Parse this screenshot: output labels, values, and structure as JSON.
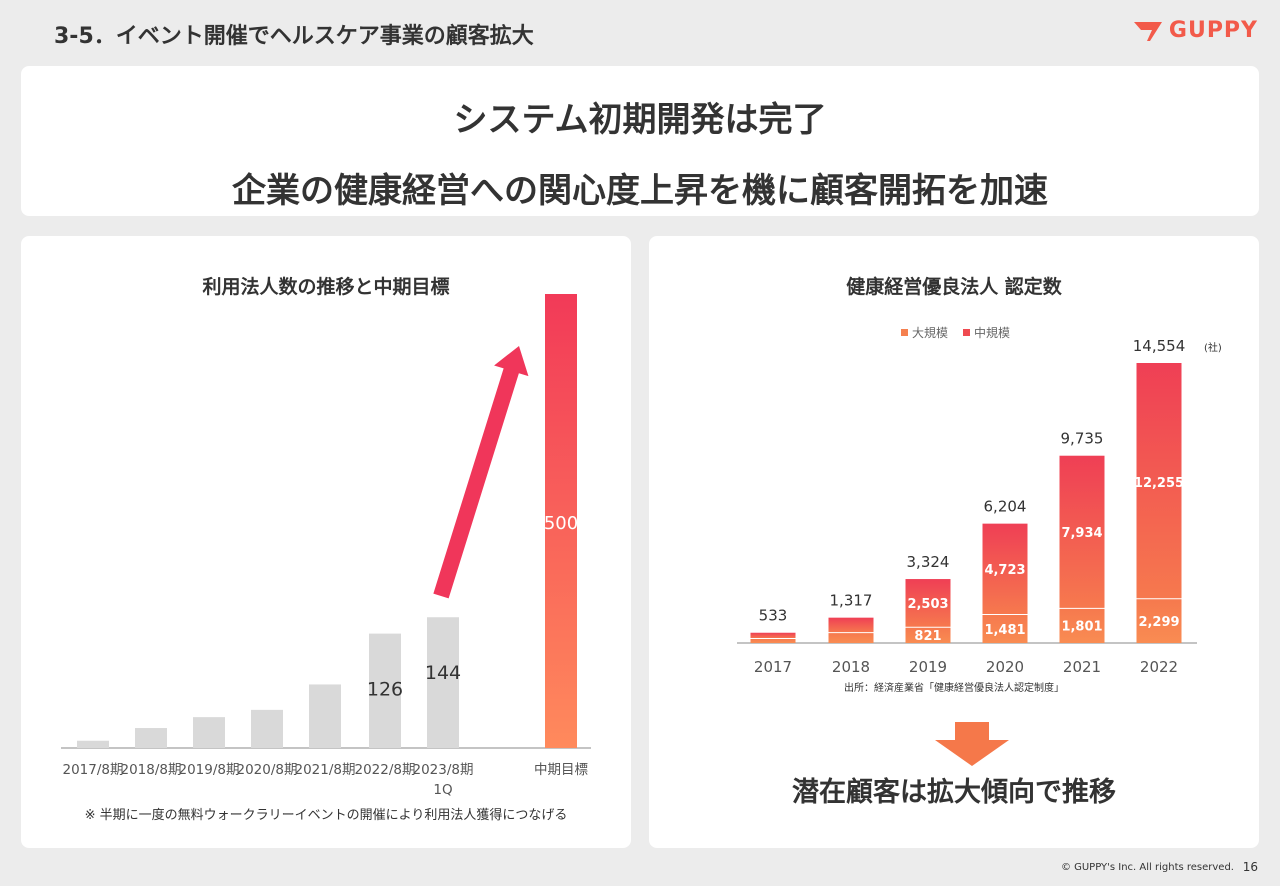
{
  "header": {
    "title": "3-5．イベント開催でヘルスケア事業の顧客拡大",
    "logo_text": "GUPPY",
    "brand_color": "#f25a4a"
  },
  "headline": {
    "line1": "システム初期開発は完了",
    "line2": "企業の健康経営への関心度上昇を機に顧客開拓を加速"
  },
  "left_panel": {
    "title": "利用法人数の推移と中期目標",
    "note": "※ 半期に一度の無料ウォークラリーイベントの開催により利用法人獲得につなげる"
  },
  "right_panel": {
    "title": "健康経営優良法人 認定数",
    "source": "出所：経済産業省「健康経営優良法人認定制度」",
    "conclusion": "潜在顧客は拡大傾向で推移"
  },
  "chart_data": [
    {
      "type": "bar",
      "title": "利用法人数の推移と中期目標",
      "categories": [
        "2017/8期",
        "2018/8期",
        "2019/8期",
        "2020/8期",
        "2021/8期",
        "2022/8期",
        "2023/8期\n1Q",
        "中期目標"
      ],
      "values": [
        8,
        22,
        34,
        42,
        70,
        126,
        144,
        500
      ],
      "data_labels": [
        "",
        "",
        "",
        "",
        "",
        "126",
        "144",
        "500"
      ],
      "ylim": [
        0,
        500
      ],
      "colors": {
        "bar": "#d9d9d9",
        "target_top": "#f23a58",
        "target_bottom": "#ff8a5c",
        "arrow": "#f0365a"
      }
    },
    {
      "type": "bar",
      "stacked": true,
      "title": "健康経営優良法人 認定数",
      "categories": [
        "2017",
        "2018",
        "2019",
        "2020",
        "2021",
        "2022"
      ],
      "series": [
        {
          "name": "大規模",
          "values": [
            235,
            541,
            821,
            1481,
            1801,
            2299
          ]
        },
        {
          "name": "中規模",
          "values": [
            298,
            776,
            2503,
            4723,
            7934,
            12255
          ]
        }
      ],
      "segment_labels": {
        "大規模": [
          "",
          "",
          "821",
          "1,481",
          "1,801",
          "2,299"
        ],
        "中規模": [
          "",
          "",
          "2,503",
          "4,723",
          "7,934",
          "12,255"
        ]
      },
      "totals": [
        "533",
        "1,317",
        "3,324",
        "6,204",
        "9,735",
        "14,554"
      ],
      "total_unit": "(社)",
      "ylim": [
        0,
        14554
      ],
      "legend_position": "top",
      "colors": {
        "大規模": "#f5804f",
        "中規模": "#ef4a50"
      }
    }
  ]
}
